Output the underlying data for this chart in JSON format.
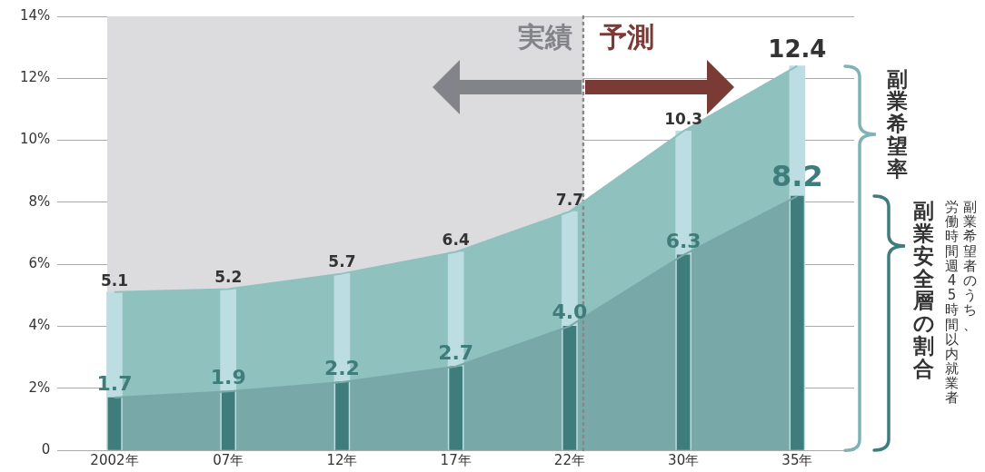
{
  "chart_data": {
    "type": "bar",
    "categories": [
      "2002年",
      "07年",
      "12年",
      "17年",
      "22年",
      "30年",
      "35年"
    ],
    "series": [
      {
        "name": "副業希望率",
        "color": "#bcdde2",
        "values": [
          5.1,
          5.2,
          5.7,
          6.4,
          7.7,
          10.3,
          12.4
        ],
        "value_labels": [
          "5.1",
          "5.2",
          "5.7",
          "6.4",
          "7.7",
          "10.3",
          "12.4"
        ]
      },
      {
        "name": "副業安全層の割合",
        "color": "#3f7c7c",
        "values": [
          1.7,
          1.9,
          2.2,
          2.7,
          4.0,
          6.3,
          8.2
        ],
        "value_labels": [
          "1.7",
          "1.9",
          "2.2",
          "2.7",
          "4.0",
          "6.3",
          "8.2"
        ]
      },
      {
        "type": "area",
        "color": "#8fc1be",
        "values": [
          5.1,
          5.2,
          5.7,
          6.4,
          7.7,
          10.3,
          12.4
        ]
      },
      {
        "type": "area",
        "color": "#78a8a8",
        "values": [
          1.7,
          1.9,
          2.2,
          2.7,
          4.0,
          6.3,
          8.2
        ]
      }
    ],
    "ylim": [
      0,
      14
    ],
    "yticks": [
      0,
      {
        "value": 2,
        "label": "2%"
      },
      {
        "value": 4,
        "label": "4%"
      },
      {
        "value": 6,
        "label": "6%"
      },
      {
        "value": 8,
        "label": "8%"
      },
      {
        "value": 10,
        "label": "10%"
      },
      {
        "value": 12,
        "label": "12%"
      },
      {
        "value": 14,
        "label": "14%"
      }
    ],
    "grid": "y",
    "legend": false,
    "bands": [
      {
        "axis": "x",
        "from": "2002年",
        "to": "22年",
        "color": "#dcdcdf"
      }
    ],
    "ref_lines": [
      {
        "axis": "x",
        "value": "22年",
        "color": "#888888",
        "line_style": "dotted"
      }
    ],
    "annotations": [
      "実績",
      "予測",
      "副業希望者のうち、",
      "労働時間週45時間以内就業者"
    ]
  }
}
